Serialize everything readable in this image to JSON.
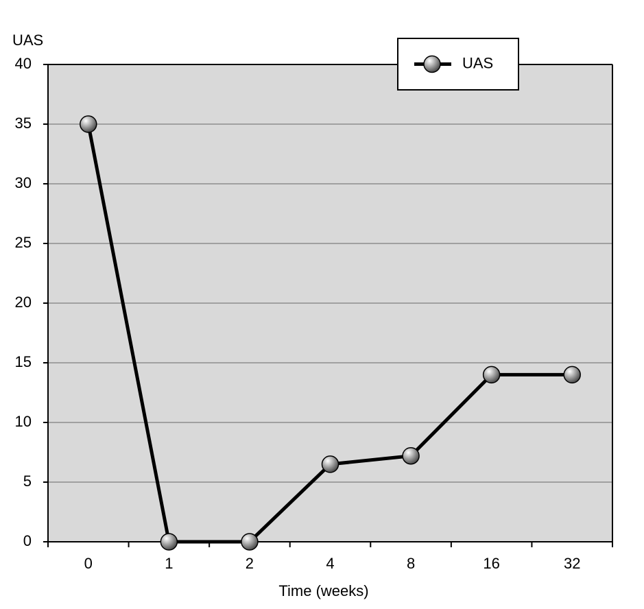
{
  "chart_data": {
    "type": "line",
    "y_label": "UAS",
    "x_label": "Time (weeks)",
    "categories": [
      "0",
      "1",
      "2",
      "4",
      "8",
      "16",
      "32"
    ],
    "series": [
      {
        "name": "UAS",
        "color": "#000000",
        "values": [
          35,
          0,
          0,
          6.5,
          7.2,
          14,
          14
        ]
      }
    ],
    "ylim": [
      0,
      40
    ],
    "yticks": [
      0,
      5,
      10,
      15,
      20,
      25,
      30,
      35,
      40
    ],
    "grid": true,
    "legend": "top-right"
  }
}
